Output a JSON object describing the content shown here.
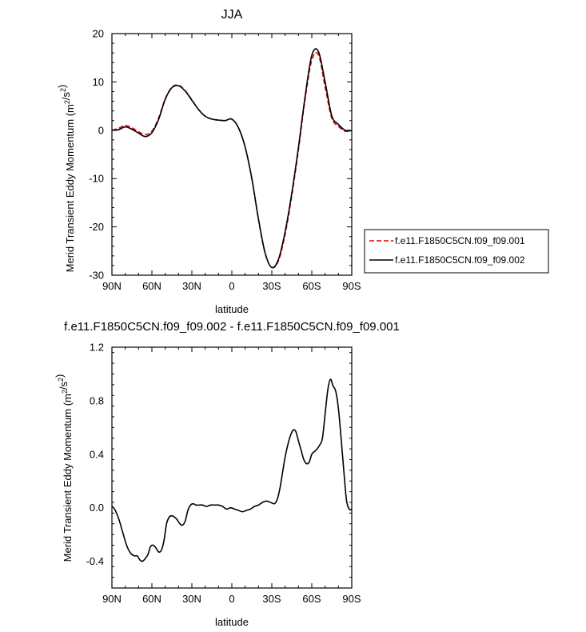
{
  "chart_data": [
    {
      "type": "line",
      "title": "JJA",
      "xlabel": "latitude",
      "ylabel": "Merid Transient Eddy Momentum (m²/s²)",
      "xlim": [
        -90,
        90
      ],
      "ylim": [
        -30,
        20
      ],
      "x_ticks": [
        -90,
        -60,
        -30,
        0,
        30,
        60,
        90
      ],
      "x_tick_labels": [
        "90N",
        "60N",
        "30N",
        "0",
        "30S",
        "60S",
        "90S"
      ],
      "y_ticks": [
        -30,
        -20,
        -10,
        0,
        10,
        20
      ],
      "y_tick_labels": [
        "-30",
        "-20",
        "-10",
        "0",
        "10",
        "20"
      ],
      "grid": false,
      "legend_position": "right",
      "series": [
        {
          "name": "f.e11.F1850C5CN.f09_f09.001",
          "color": "#dd0000",
          "dash": "dashed",
          "x": [
            -90,
            -85,
            -80,
            -75,
            -70,
            -65,
            -60,
            -55,
            -50,
            -45,
            -40,
            -35,
            -30,
            -25,
            -20,
            -15,
            -10,
            -5,
            0,
            5,
            10,
            15,
            20,
            25,
            30,
            35,
            40,
            45,
            50,
            55,
            60,
            65,
            70,
            75,
            80,
            85,
            90
          ],
          "y": [
            0,
            0.4,
            1.0,
            0.5,
            -0.3,
            -0.9,
            -0.2,
            2.5,
            6.5,
            8.9,
            9.3,
            8.2,
            6.3,
            4.3,
            2.9,
            2.3,
            2.1,
            2.0,
            2.3,
            0.5,
            -3.5,
            -10.0,
            -18.5,
            -25.5,
            -28.4,
            -27.0,
            -21.5,
            -13.5,
            -4.0,
            6.5,
            14.5,
            15.6,
            9.0,
            2.5,
            0.8,
            -0.2,
            -0.1
          ]
        },
        {
          "name": "f.e11.F1850C5CN.f09_f09.002",
          "color": "#000000",
          "dash": "solid",
          "x": [
            -90,
            -85,
            -80,
            -75,
            -70,
            -65,
            -60,
            -55,
            -50,
            -45,
            -40,
            -35,
            -30,
            -25,
            -20,
            -15,
            -10,
            -5,
            0,
            5,
            10,
            15,
            20,
            25,
            30,
            35,
            40,
            45,
            50,
            55,
            60,
            65,
            70,
            75,
            80,
            85,
            90
          ],
          "y": [
            0,
            0.1,
            0.7,
            0.2,
            -0.6,
            -1.3,
            -0.5,
            2.2,
            6.4,
            8.8,
            9.2,
            8.1,
            6.2,
            4.3,
            2.9,
            2.3,
            2.1,
            2.0,
            2.3,
            0.5,
            -3.5,
            -10.0,
            -18.4,
            -25.4,
            -28.4,
            -26.7,
            -21.0,
            -13.0,
            -3.5,
            7.0,
            15.5,
            16.3,
            10.0,
            3.0,
            1.2,
            0.0,
            -0.1
          ]
        }
      ]
    },
    {
      "type": "line",
      "title": "f.e11.F1850C5CN.f09_f09.002 - f.e11.F1850C5CN.f09_f09.001",
      "xlabel": "latitude",
      "ylabel": "Merid Transient Eddy Momentum (m²/s²)",
      "xlim": [
        -90,
        90
      ],
      "ylim": [
        -0.6,
        1.2
      ],
      "x_ticks": [
        -90,
        -60,
        -30,
        0,
        30,
        60,
        90
      ],
      "x_tick_labels": [
        "90N",
        "60N",
        "30N",
        "0",
        "30S",
        "60S",
        "90S"
      ],
      "y_ticks": [
        -0.4,
        0.0,
        0.4,
        0.8,
        1.2
      ],
      "y_tick_labels": [
        "-0.4",
        "0.0",
        "0.4",
        "0.8",
        "1.2"
      ],
      "grid": false,
      "series": [
        {
          "color": "#000000",
          "dash": "solid",
          "x": [
            -90,
            -88,
            -85,
            -82,
            -79,
            -76,
            -73,
            -71,
            -69,
            -67,
            -65,
            -63,
            -61,
            -59,
            -57,
            -55,
            -53,
            -51,
            -49,
            -47,
            -45,
            -43,
            -41,
            -39,
            -37,
            -35,
            -33,
            -31,
            -29,
            -27,
            -25,
            -22,
            -19,
            -16,
            -13,
            -10,
            -7,
            -4,
            -1,
            2,
            5,
            8,
            11,
            14,
            17,
            20,
            23,
            26,
            29,
            32,
            34,
            36,
            38,
            40,
            42,
            44,
            46,
            48,
            50,
            52,
            54,
            56,
            58,
            60,
            62,
            64,
            66,
            68,
            70,
            72,
            74,
            76,
            78,
            80,
            82,
            84,
            86,
            88,
            90
          ],
          "y": [
            0.01,
            -0.01,
            -0.08,
            -0.18,
            -0.28,
            -0.34,
            -0.36,
            -0.36,
            -0.39,
            -0.4,
            -0.38,
            -0.35,
            -0.29,
            -0.28,
            -0.3,
            -0.33,
            -0.32,
            -0.25,
            -0.12,
            -0.07,
            -0.06,
            -0.07,
            -0.09,
            -0.12,
            -0.13,
            -0.1,
            -0.02,
            0.02,
            0.03,
            0.02,
            0.02,
            0.02,
            0.01,
            0.02,
            0.02,
            0.02,
            0.01,
            -0.01,
            0.0,
            -0.01,
            -0.02,
            -0.03,
            -0.02,
            -0.01,
            0.01,
            0.02,
            0.04,
            0.05,
            0.04,
            0.03,
            0.06,
            0.14,
            0.26,
            0.38,
            0.47,
            0.54,
            0.58,
            0.57,
            0.5,
            0.43,
            0.36,
            0.33,
            0.34,
            0.4,
            0.42,
            0.44,
            0.47,
            0.52,
            0.7,
            0.88,
            0.96,
            0.91,
            0.87,
            0.74,
            0.52,
            0.28,
            0.06,
            -0.01,
            -0.01
          ]
        }
      ]
    }
  ]
}
